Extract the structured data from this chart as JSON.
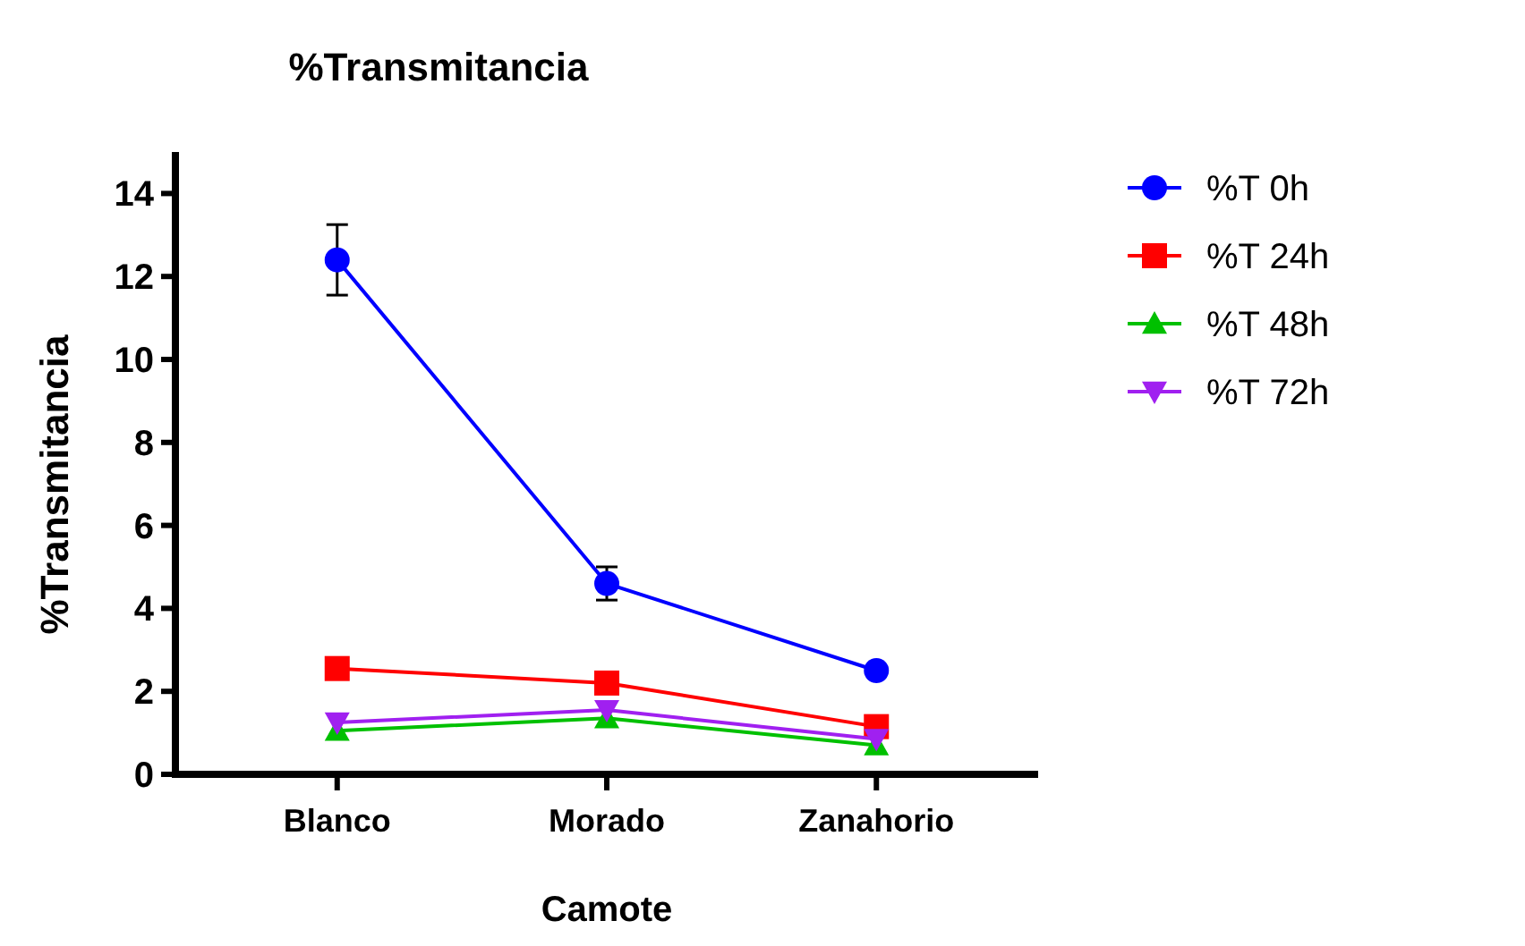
{
  "chart_data": {
    "type": "line",
    "title": "%Transmitancia",
    "xlabel": "Camote",
    "ylabel": "%Transmitancia",
    "categories": [
      "Blanco",
      "Morado",
      "Zanahorio"
    ],
    "ylim": [
      0,
      15
    ],
    "yticks": [
      0,
      2,
      4,
      6,
      8,
      10,
      12,
      14
    ],
    "grid": false,
    "legend": "right",
    "series": [
      {
        "name": "%T 0h",
        "color": "#0000ff",
        "marker": "circle",
        "values": [
          12.4,
          4.6,
          2.5
        ],
        "errors": [
          0.85,
          0.4,
          null
        ]
      },
      {
        "name": "%T 24h",
        "color": "#ff0000",
        "marker": "square",
        "values": [
          2.55,
          2.2,
          1.15
        ]
      },
      {
        "name": "%T 48h",
        "color": "#00c000",
        "marker": "triangle",
        "values": [
          1.05,
          1.35,
          0.7
        ]
      },
      {
        "name": "%T 72h",
        "color": "#a020f0",
        "marker": "triangle-down",
        "values": [
          1.25,
          1.55,
          0.85
        ]
      }
    ]
  }
}
